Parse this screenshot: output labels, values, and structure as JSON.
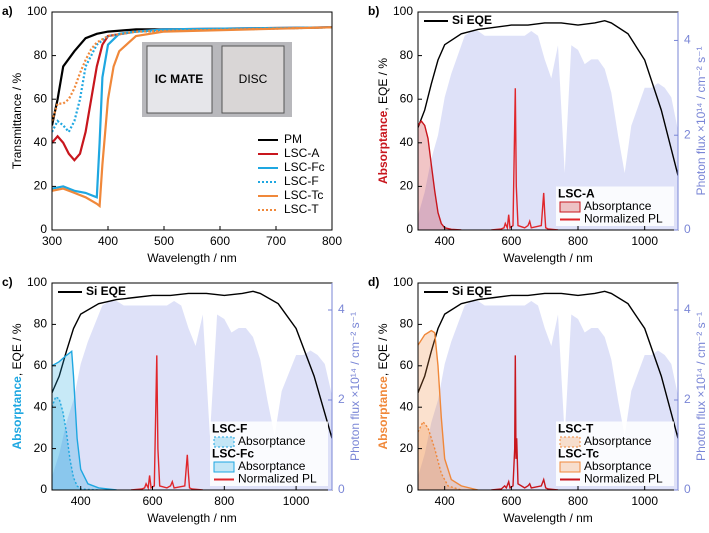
{
  "chart_data": [
    {
      "type": "line",
      "panel_label": "a)",
      "xlabel": "Wavelength / nm",
      "ylabel": "Transmittance / %",
      "xlim": [
        300,
        800
      ],
      "ylim": [
        0,
        100
      ],
      "xticks": [
        300,
        400,
        500,
        600,
        700,
        800
      ],
      "yticks": [
        0,
        20,
        40,
        60,
        80,
        100
      ],
      "inset_labels": [
        "IC MATE",
        "DISC"
      ],
      "series": [
        {
          "name": "PM",
          "color": "#000000",
          "x": [
            300,
            310,
            320,
            340,
            360,
            380,
            400,
            450,
            500,
            600,
            800
          ],
          "values": [
            48,
            60,
            75,
            82,
            88,
            90,
            91,
            92,
            92,
            92,
            93
          ]
        },
        {
          "name": "LSC-A",
          "color": "#c8161d",
          "x": [
            300,
            310,
            320,
            330,
            340,
            350,
            360,
            370,
            380,
            390,
            400,
            450,
            500,
            800
          ],
          "values": [
            40,
            43,
            40,
            35,
            32,
            35,
            45,
            60,
            75,
            85,
            89,
            91,
            92,
            93
          ]
        },
        {
          "name": "LSC-Fc",
          "color": "#1ea7e1",
          "x": [
            300,
            320,
            340,
            360,
            370,
            380,
            385,
            390,
            400,
            420,
            450,
            500,
            800
          ],
          "values": [
            19,
            20,
            18,
            17,
            16,
            15,
            40,
            70,
            85,
            90,
            91,
            92,
            93
          ]
        },
        {
          "name": "LSC-F",
          "color": "#1ea7e1",
          "dash": true,
          "x": [
            300,
            310,
            320,
            330,
            340,
            350,
            360,
            380,
            400,
            450,
            800
          ],
          "values": [
            45,
            50,
            48,
            45,
            50,
            60,
            75,
            85,
            89,
            91,
            93
          ]
        },
        {
          "name": "LSC-Tc",
          "color": "#f0883a",
          "x": [
            300,
            320,
            340,
            360,
            380,
            385,
            390,
            400,
            410,
            420,
            450,
            500,
            800
          ],
          "values": [
            18,
            19,
            17,
            15,
            12,
            11,
            30,
            60,
            75,
            82,
            89,
            91,
            93
          ]
        },
        {
          "name": "LSC-T",
          "color": "#f0883a",
          "dash": true,
          "x": [
            300,
            310,
            320,
            330,
            340,
            350,
            360,
            370,
            380,
            400,
            450,
            800
          ],
          "values": [
            50,
            58,
            58,
            60,
            65,
            72,
            78,
            83,
            86,
            89,
            91,
            93
          ]
        }
      ]
    },
    {
      "type": "line",
      "panel_label": "b)",
      "xlabel": "Wavelength / nm",
      "ylabel_highlight": "Absorptance",
      "ylabel_highlight_color": "#c8161d",
      "ylabel": ", EQE / %",
      "y2label": "Photon flux ×10¹⁴ / cm⁻² s⁻¹",
      "xlim": [
        320,
        1100
      ],
      "ylim": [
        0,
        100
      ],
      "y2lim": [
        0,
        4.6
      ],
      "xticks": [
        400,
        600,
        800,
        1000
      ],
      "yticks": [
        0,
        20,
        40,
        60,
        80,
        100
      ],
      "y2ticks": [
        0,
        2,
        4
      ],
      "series": [
        {
          "axis": "y2",
          "area": true,
          "color": "#c3c9f2",
          "x": [
            320,
            340,
            360,
            380,
            400,
            420,
            440,
            460,
            480,
            500,
            520,
            540,
            560,
            580,
            600,
            620,
            640,
            660,
            680,
            700,
            720,
            740,
            760,
            780,
            800,
            820,
            840,
            860,
            880,
            900,
            920,
            940,
            960,
            980,
            1000,
            1020,
            1040,
            1060,
            1080,
            1100
          ],
          "values": [
            0.3,
            0.8,
            1.5,
            2.0,
            2.8,
            3.3,
            3.7,
            4.1,
            4.2,
            4.2,
            4.1,
            4.1,
            4.1,
            4.1,
            4.1,
            4.1,
            4.1,
            4.2,
            4.1,
            3.6,
            3.2,
            3.9,
            1.2,
            3.9,
            3.8,
            3.5,
            3.6,
            3.6,
            3.4,
            2.9,
            2.0,
            1.2,
            2.2,
            2.6,
            3.0,
            3.0,
            3.1,
            3.0,
            2.8,
            2.1
          ]
        },
        {
          "name": "Si EQE",
          "color": "#000000",
          "x": [
            320,
            340,
            360,
            380,
            400,
            450,
            500,
            550,
            600,
            650,
            700,
            750,
            800,
            850,
            880,
            900,
            950,
            1000,
            1050,
            1100
          ],
          "values": [
            47,
            55,
            67,
            78,
            85,
            90,
            92,
            93,
            94,
            94,
            95,
            95,
            94,
            95,
            96,
            95,
            90,
            78,
            55,
            25
          ]
        },
        {
          "name": "Absorptance",
          "group": "LSC-A",
          "area": true,
          "color": "#c8161d",
          "x": [
            320,
            330,
            340,
            350,
            360,
            370,
            380,
            390,
            400,
            420,
            450
          ],
          "values": [
            48,
            50,
            48,
            42,
            30,
            18,
            8,
            3,
            1,
            0.3,
            0
          ]
        },
        {
          "name": "Normalized PL",
          "group": "LSC-A",
          "color": "#e0262b",
          "x": [
            540,
            570,
            578,
            582,
            588,
            592,
            596,
            605,
            612,
            615,
            620,
            640,
            650,
            655,
            660,
            690,
            697,
            700,
            703,
            710,
            740
          ],
          "values": [
            0,
            0.5,
            1,
            3,
            1,
            7,
            1,
            2,
            65,
            20,
            2,
            1,
            2,
            4,
            1,
            2,
            17,
            8,
            1,
            0.5,
            0
          ]
        }
      ]
    },
    {
      "type": "line",
      "panel_label": "c)",
      "xlabel": "Wavelength / nm",
      "ylabel_highlight": "Absorptance",
      "ylabel_highlight_color": "#1ea7e1",
      "ylabel": ", EQE / %",
      "y2label": "Photon flux ×10¹⁴ / cm⁻² s⁻¹",
      "xlim": [
        320,
        1100
      ],
      "ylim": [
        0,
        100
      ],
      "y2lim": [
        0,
        4.6
      ],
      "xticks": [
        400,
        600,
        800,
        1000
      ],
      "yticks": [
        0,
        20,
        40,
        60,
        80,
        100
      ],
      "y2ticks": [
        0,
        2,
        4
      ],
      "series": [
        {
          "axis": "y2",
          "area": true,
          "color": "#c3c9f2",
          "x": [
            320,
            340,
            360,
            380,
            400,
            420,
            440,
            460,
            480,
            500,
            520,
            540,
            560,
            580,
            600,
            620,
            640,
            660,
            680,
            700,
            720,
            740,
            760,
            780,
            800,
            820,
            840,
            860,
            880,
            900,
            920,
            940,
            960,
            980,
            1000,
            1020,
            1040,
            1060,
            1080,
            1100
          ],
          "values": [
            0.3,
            0.8,
            1.5,
            2.0,
            2.8,
            3.3,
            3.7,
            4.1,
            4.2,
            4.2,
            4.1,
            4.1,
            4.1,
            4.1,
            4.1,
            4.1,
            4.1,
            4.2,
            4.1,
            3.6,
            3.2,
            3.9,
            1.2,
            3.9,
            3.8,
            3.5,
            3.6,
            3.6,
            3.4,
            2.9,
            2.0,
            1.2,
            2.2,
            2.6,
            3.0,
            3.0,
            3.1,
            3.0,
            2.8,
            2.1
          ]
        },
        {
          "name": "Si EQE",
          "color": "#000000",
          "x": [
            320,
            340,
            360,
            380,
            400,
            450,
            500,
            550,
            600,
            650,
            700,
            750,
            800,
            850,
            880,
            900,
            950,
            1000,
            1050,
            1100
          ],
          "values": [
            47,
            55,
            67,
            78,
            85,
            90,
            92,
            93,
            94,
            94,
            95,
            95,
            94,
            95,
            96,
            95,
            90,
            78,
            55,
            25
          ]
        },
        {
          "name": "Absorptance",
          "group": "LSC-F",
          "area": true,
          "dash": true,
          "color": "#1ea7e1",
          "x": [
            320,
            330,
            340,
            350,
            360,
            370,
            380,
            390,
            400,
            450
          ],
          "values": [
            40,
            45,
            44,
            38,
            28,
            15,
            6,
            2,
            0.5,
            0
          ]
        },
        {
          "name": "Absorptance",
          "group": "LSC-Fc",
          "area": true,
          "color": "#1ea7e1",
          "x": [
            320,
            340,
            360,
            375,
            380,
            385,
            390,
            400,
            420,
            450,
            500
          ],
          "values": [
            60,
            62,
            65,
            67,
            55,
            40,
            25,
            10,
            3,
            1,
            0
          ]
        },
        {
          "name": "Normalized PL",
          "group": "LSC-Fc",
          "color": "#e0262b",
          "x": [
            540,
            570,
            578,
            582,
            588,
            592,
            596,
            605,
            612,
            615,
            620,
            640,
            650,
            655,
            660,
            690,
            697,
            700,
            703,
            710,
            740
          ],
          "values": [
            0,
            0.5,
            1,
            3,
            1,
            7,
            1,
            2,
            65,
            20,
            2,
            1,
            2,
            4,
            1,
            2,
            17,
            8,
            1,
            0.5,
            0
          ]
        }
      ]
    },
    {
      "type": "line",
      "panel_label": "d)",
      "xlabel": "Wavelength / nm",
      "ylabel_highlight": "Absorptance",
      "ylabel_highlight_color": "#f0883a",
      "ylabel": ", EQE / %",
      "y2label": "Photon flux ×10¹⁴ / cm⁻² s⁻¹",
      "xlim": [
        320,
        1100
      ],
      "ylim": [
        0,
        100
      ],
      "y2lim": [
        0,
        4.6
      ],
      "xticks": [
        400,
        600,
        800,
        1000
      ],
      "yticks": [
        0,
        20,
        40,
        60,
        80,
        100
      ],
      "y2ticks": [
        0,
        2,
        4
      ],
      "series": [
        {
          "axis": "y2",
          "area": true,
          "color": "#c3c9f2",
          "x": [
            320,
            340,
            360,
            380,
            400,
            420,
            440,
            460,
            480,
            500,
            520,
            540,
            560,
            580,
            600,
            620,
            640,
            660,
            680,
            700,
            720,
            740,
            760,
            780,
            800,
            820,
            840,
            860,
            880,
            900,
            920,
            940,
            960,
            980,
            1000,
            1020,
            1040,
            1060,
            1080,
            1100
          ],
          "values": [
            0.3,
            0.8,
            1.5,
            2.0,
            2.8,
            3.3,
            3.7,
            4.1,
            4.2,
            4.2,
            4.1,
            4.1,
            4.1,
            4.1,
            4.1,
            4.1,
            4.1,
            4.2,
            4.1,
            3.6,
            3.2,
            3.9,
            1.2,
            3.9,
            3.8,
            3.5,
            3.6,
            3.6,
            3.4,
            2.9,
            2.0,
            1.2,
            2.2,
            2.6,
            3.0,
            3.0,
            3.1,
            3.0,
            2.8,
            2.1
          ]
        },
        {
          "name": "Si EQE",
          "color": "#000000",
          "x": [
            320,
            340,
            360,
            380,
            400,
            450,
            500,
            550,
            600,
            650,
            700,
            750,
            800,
            850,
            880,
            900,
            950,
            1000,
            1050,
            1100
          ],
          "values": [
            47,
            55,
            67,
            78,
            85,
            90,
            92,
            93,
            94,
            94,
            95,
            95,
            94,
            95,
            96,
            95,
            90,
            78,
            55,
            25
          ]
        },
        {
          "name": "Absorptance",
          "group": "LSC-T",
          "area": true,
          "dash": true,
          "color": "#f0883a",
          "x": [
            320,
            335,
            350,
            370,
            390,
            410,
            450
          ],
          "values": [
            28,
            33,
            30,
            20,
            8,
            2,
            0
          ]
        },
        {
          "name": "Absorptance",
          "group": "LSC-Tc",
          "area": true,
          "color": "#f0883a",
          "x": [
            320,
            340,
            360,
            370,
            380,
            390,
            400,
            420,
            450,
            500
          ],
          "values": [
            70,
            75,
            77,
            76,
            60,
            35,
            15,
            5,
            2,
            0
          ]
        },
        {
          "name": "Normalized PL",
          "group": "LSC-Tc",
          "color": "#c8161d",
          "x": [
            540,
            570,
            580,
            585,
            592,
            596,
            605,
            610,
            612,
            614,
            616,
            620,
            640,
            650,
            655,
            660,
            690,
            697,
            700,
            703,
            710,
            740
          ],
          "values": [
            0,
            0.5,
            2,
            1,
            4,
            1,
            2,
            20,
            65,
            15,
            25,
            3,
            1,
            2,
            3,
            1,
            2,
            5,
            3,
            1,
            0.5,
            0
          ]
        }
      ]
    }
  ]
}
